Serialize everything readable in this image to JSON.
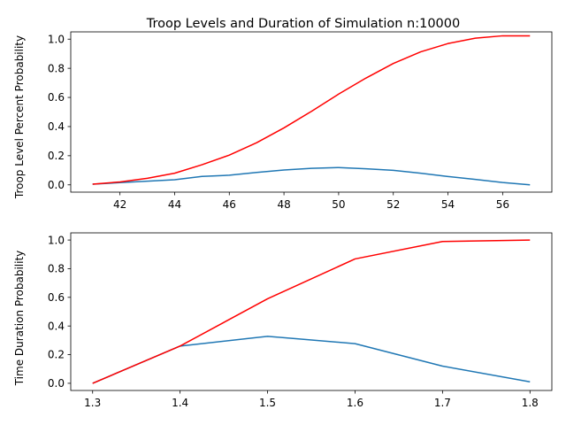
{
  "chart_data": [
    {
      "type": "line",
      "title": "Troop Levels and Duration of Simulation n:10000",
      "xlabel": "",
      "ylabel": "Troop Level Percent Probability",
      "xlim": [
        40.2,
        57.8
      ],
      "ylim": [
        -0.05,
        1.05
      ],
      "xticks": [
        42,
        44,
        46,
        48,
        50,
        52,
        54,
        56
      ],
      "xtick_labels": [
        "42",
        "44",
        "46",
        "48",
        "50",
        "52",
        "54",
        "56"
      ],
      "yticks": [
        0.0,
        0.2,
        0.4,
        0.6,
        0.8,
        1.0
      ],
      "ytick_labels": [
        "0.0",
        "0.2",
        "0.4",
        "0.6",
        "0.8",
        "1.0"
      ],
      "grid": false,
      "series": [
        {
          "color": "#1f77b4",
          "x": [
            41,
            42,
            43,
            44,
            45,
            46,
            47,
            48,
            49,
            50,
            51,
            52,
            53,
            54,
            55,
            56,
            57
          ],
          "y": [
            0.005,
            0.015,
            0.025,
            0.035,
            0.058,
            0.066,
            0.085,
            0.102,
            0.113,
            0.119,
            0.11,
            0.1,
            0.08,
            0.057,
            0.037,
            0.016,
            0.0
          ]
        },
        {
          "color": "#ff0000",
          "x": [
            41,
            42,
            43,
            44,
            45,
            46,
            47,
            48,
            49,
            50,
            51,
            52,
            53,
            54,
            55,
            56,
            57
          ],
          "y": [
            0.005,
            0.02,
            0.045,
            0.08,
            0.138,
            0.204,
            0.289,
            0.391,
            0.504,
            0.623,
            0.733,
            0.833,
            0.913,
            0.97,
            1.007,
            1.023,
            1.023
          ]
        }
      ]
    },
    {
      "type": "line",
      "title": "",
      "xlabel": "",
      "ylabel": "Time Duration Probability",
      "xlim": [
        1.275,
        1.825
      ],
      "ylim": [
        -0.05,
        1.05
      ],
      "xticks": [
        1.3,
        1.4,
        1.5,
        1.6,
        1.7,
        1.8
      ],
      "xtick_labels": [
        "1.3",
        "1.4",
        "1.5",
        "1.6",
        "1.7",
        "1.8"
      ],
      "yticks": [
        0.0,
        0.2,
        0.4,
        0.6,
        0.8,
        1.0
      ],
      "ytick_labels": [
        "0.0",
        "0.2",
        "0.4",
        "0.6",
        "0.8",
        "1.0"
      ],
      "grid": false,
      "series": [
        {
          "color": "#1f77b4",
          "x": [
            1.3,
            1.4,
            1.5,
            1.6,
            1.7,
            1.8
          ],
          "y": [
            0.0,
            0.26,
            0.328,
            0.277,
            0.12,
            0.01
          ]
        },
        {
          "color": "#ff0000",
          "x": [
            1.3,
            1.4,
            1.5,
            1.6,
            1.7,
            1.8
          ],
          "y": [
            0.0,
            0.26,
            0.59,
            0.868,
            0.99,
            1.0
          ]
        }
      ]
    }
  ]
}
